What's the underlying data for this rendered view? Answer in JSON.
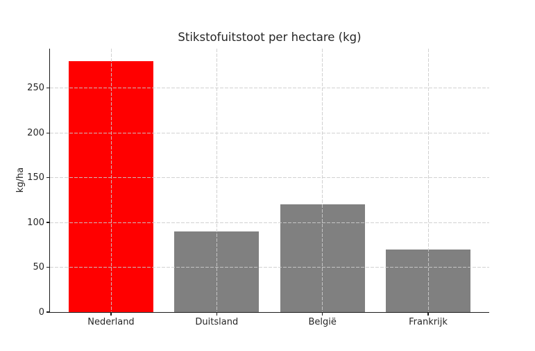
{
  "figure": {
    "background_color": "#ffffff",
    "text_color": "#262626",
    "spine_color": "#1a1a1a"
  },
  "chart_data": {
    "type": "bar",
    "title": "Stikstofuitstoot per hectare (kg)",
    "xlabel": "",
    "ylabel": "kg/ha",
    "categories": [
      "Nederland",
      "Duitsland",
      "België",
      "Frankrijk"
    ],
    "values": [
      280,
      90,
      120,
      70
    ],
    "bar_colors": [
      "#ff0000",
      "#808080",
      "#808080",
      "#808080"
    ],
    "highlight_color": "#ff0000",
    "default_bar_color": "#808080",
    "ylim": [
      0,
      294
    ],
    "yticks": [
      0,
      50,
      100,
      150,
      200,
      250
    ],
    "grid": true,
    "grid_style": "dashed",
    "gridline_color": "#cccccc",
    "legend": null
  }
}
